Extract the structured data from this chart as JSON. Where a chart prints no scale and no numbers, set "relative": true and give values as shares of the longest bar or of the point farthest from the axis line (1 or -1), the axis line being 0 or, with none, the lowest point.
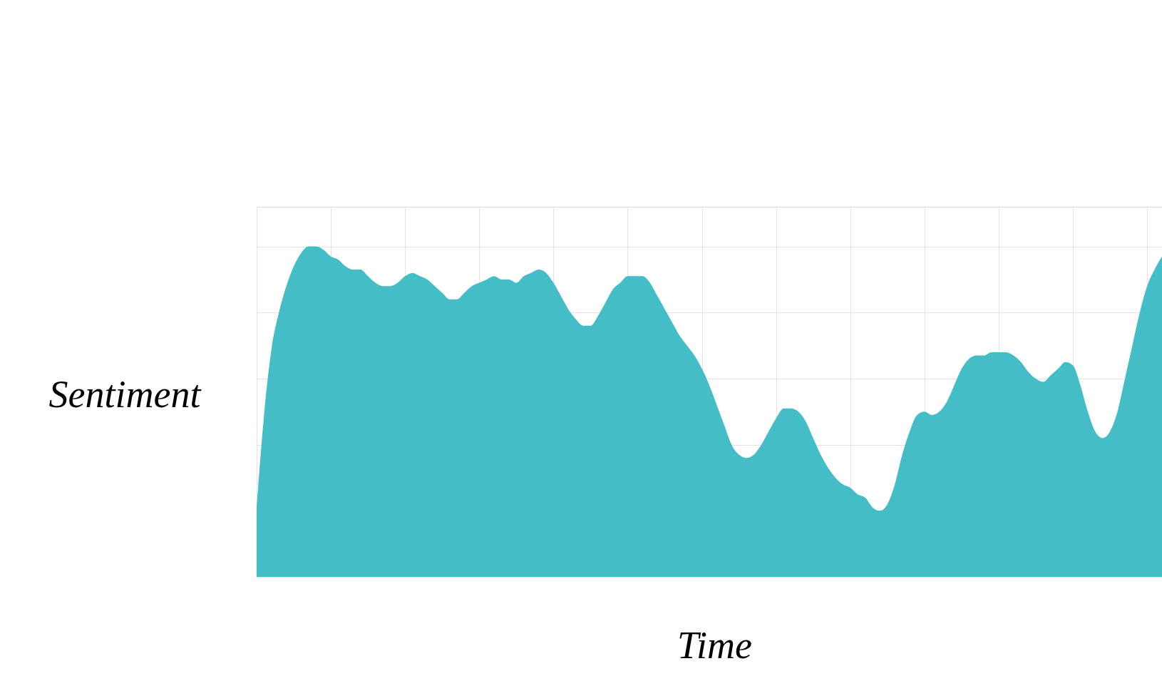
{
  "chart_data": {
    "type": "area",
    "relative": true,
    "xlabel": "Time",
    "ylabel": "Sentiment",
    "grid": true,
    "categories": [
      null,
      null,
      null,
      null,
      null,
      null,
      null,
      null,
      null,
      null,
      null,
      null,
      null,
      null,
      null,
      null,
      null,
      null,
      null,
      null,
      null,
      null,
      null,
      null,
      null,
      null,
      null,
      null,
      null,
      null,
      null,
      null,
      null,
      null,
      null,
      null,
      null,
      null,
      null,
      null,
      null,
      null,
      null,
      null,
      null,
      null,
      null,
      null,
      null,
      null,
      null,
      null,
      null,
      null,
      null,
      null,
      null,
      null,
      null,
      null,
      null,
      null,
      null,
      null,
      null,
      null,
      null,
      null,
      null,
      null,
      null,
      null,
      null,
      null,
      null,
      null,
      null,
      null,
      null,
      null,
      null,
      null,
      null,
      null,
      null,
      null,
      null,
      null,
      null,
      null,
      null,
      null,
      null,
      null,
      null,
      null,
      null,
      null,
      null,
      null,
      null,
      null,
      null,
      null,
      null,
      null,
      null,
      null,
      null,
      null,
      null,
      null,
      null,
      null,
      null,
      null,
      null,
      null,
      null,
      null,
      null,
      null,
      null
    ],
    "series": [
      {
        "color": "#44bdc7",
        "values": [
          0.21,
          0.49,
          0.69,
          0.8,
          0.88,
          0.94,
          0.98,
          1.0,
          1,
          0.99,
          0.97,
          0.96,
          0.94,
          0.93,
          0.93,
          0.91,
          0.89,
          0.88,
          0.88,
          0.89,
          0.91,
          0.92,
          0.91,
          0.9,
          0.88,
          0.86,
          0.84,
          0.84,
          0.86,
          0.88,
          0.89,
          0.9,
          0.91,
          0.9,
          0.9,
          0.89,
          0.91,
          0.92,
          0.93,
          0.92,
          0.89,
          0.85,
          0.81,
          0.78,
          0.76,
          0.76,
          0.79,
          0.83,
          0.87,
          0.89,
          0.91,
          0.91,
          0.91,
          0.89,
          0.85,
          0.81,
          0.77,
          0.73,
          0.7,
          0.67,
          0.63,
          0.58,
          0.52,
          0.46,
          0.4,
          0.37,
          0.36,
          0.37,
          0.4,
          0.44,
          0.48,
          0.51,
          0.51,
          0.5,
          0.47,
          0.42,
          0.37,
          0.33,
          0.3,
          0.28,
          0.27,
          0.25,
          0.24,
          0.21,
          0.2,
          0.22,
          0.28,
          0.37,
          0.44,
          0.49,
          0.5,
          0.49,
          0.5,
          0.53,
          0.58,
          0.63,
          0.66,
          0.67,
          0.67,
          0.68,
          0.68,
          0.68,
          0.67,
          0.65,
          0.62,
          0.6,
          0.59,
          0.61,
          0.63,
          0.65,
          0.64,
          0.58,
          0.5,
          0.44,
          0.42,
          0.44,
          0.5,
          0.6,
          0.7,
          0.8,
          0.88,
          0.93,
          0.97
        ]
      }
    ]
  }
}
